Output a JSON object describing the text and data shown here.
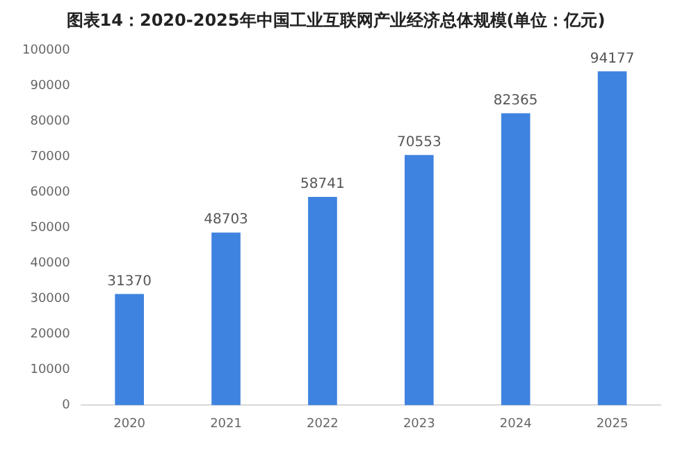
{
  "chart_data": {
    "type": "bar",
    "title": "图表14：2020-2025年中国工业互联网产业经济总体规模(单位：亿元)",
    "categories": [
      "2020",
      "2021",
      "2022",
      "2023",
      "2024",
      "2025"
    ],
    "values": [
      31370,
      48703,
      58741,
      70553,
      82365,
      94177
    ],
    "color": "#3f83e0",
    "ylim": [
      0,
      100000
    ],
    "yticks": [
      0,
      10000,
      20000,
      30000,
      40000,
      50000,
      60000,
      70000,
      80000,
      90000,
      100000
    ],
    "grid": false,
    "legend": false,
    "data_labels": true
  }
}
